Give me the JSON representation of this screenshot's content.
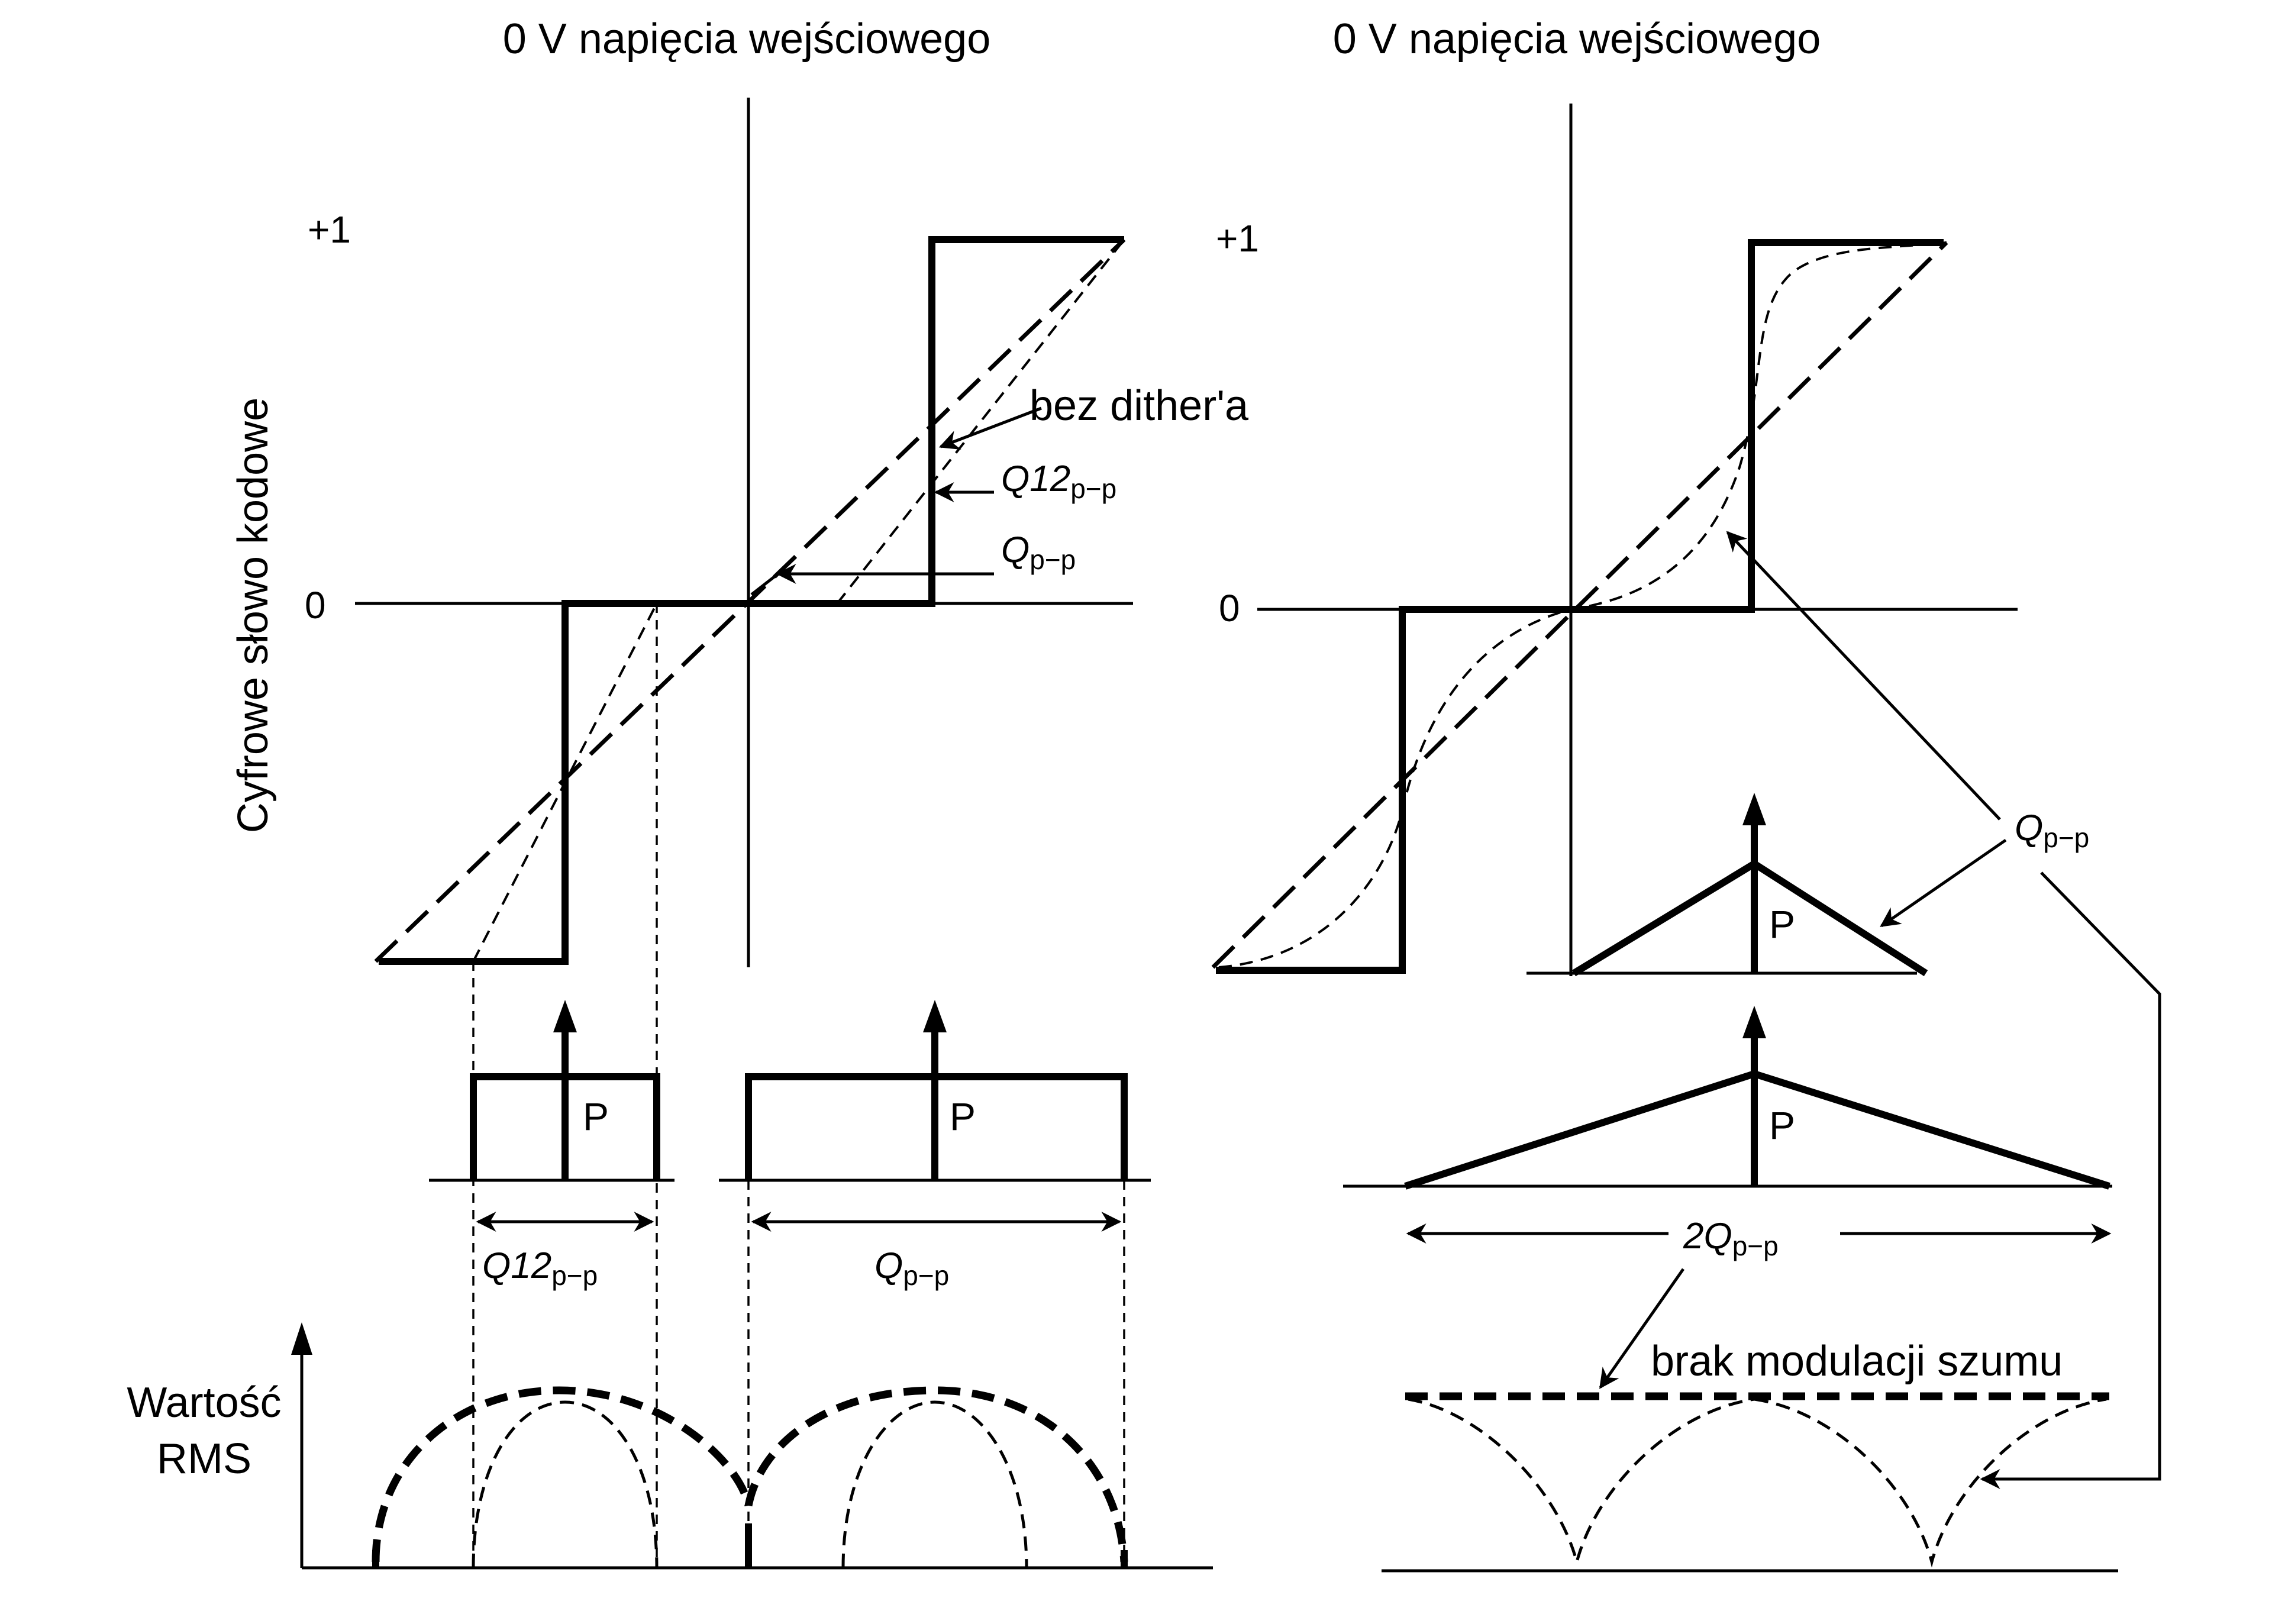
{
  "left_panel": {
    "header": "0 V napięcia wejściowego",
    "y_axis_label": "Cyfrowe słowo kodowe",
    "level_plus1": "+1",
    "level_zero": "0",
    "annotation_no_dither": "bez dither'a",
    "annotation_q12_main": "Q12",
    "annotation_q12_sub": "p−p",
    "annotation_q_main": "Q",
    "annotation_q_sub": "p−p",
    "pdf_left_label": "P",
    "pdf_right_label": "P",
    "width_left_main": "Q12",
    "width_left_sub": "p−p",
    "width_right_main": "Q",
    "width_right_sub": "p−p",
    "rms_label_line1": "Wartość",
    "rms_label_line2": "RMS"
  },
  "right_panel": {
    "header": "0 V napięcia wejściowego",
    "level_plus1": "+1",
    "level_zero": "0",
    "annotation_q_main": "Q",
    "annotation_q_sub": "p−p",
    "pdf_small_label": "P",
    "pdf_large_label": "P",
    "width_main": "2Q",
    "width_sub": "p−p",
    "annotation_no_modulation": "brak modulacji szumu"
  }
}
